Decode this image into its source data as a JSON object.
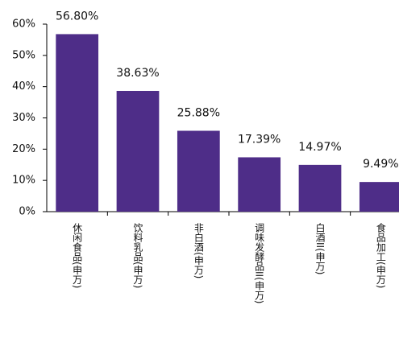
{
  "chart_data": {
    "type": "bar",
    "categories": [
      "休闲食品(申万)",
      "饮料乳品(申万)",
      "非白酒(申万)",
      "调味发酵品II(申万)",
      "白酒II(申万)",
      "食品加工(申万)"
    ],
    "values": [
      56.8,
      38.63,
      25.88,
      17.39,
      14.97,
      9.49
    ],
    "value_labels": [
      "56.80%",
      "38.63%",
      "25.88%",
      "17.39%",
      "14.97%",
      "9.49%"
    ],
    "color": "#4e2d88",
    "ylim": [
      0,
      60
    ],
    "yticks": [
      {
        "value": 0,
        "label": "0%"
      },
      {
        "value": 10,
        "label": "10%"
      },
      {
        "value": 20,
        "label": "20%"
      },
      {
        "value": 30,
        "label": "30%"
      },
      {
        "value": 40,
        "label": "40%"
      },
      {
        "value": 50,
        "label": "50%"
      },
      {
        "value": 60,
        "label": "60%"
      }
    ],
    "grid": false
  }
}
